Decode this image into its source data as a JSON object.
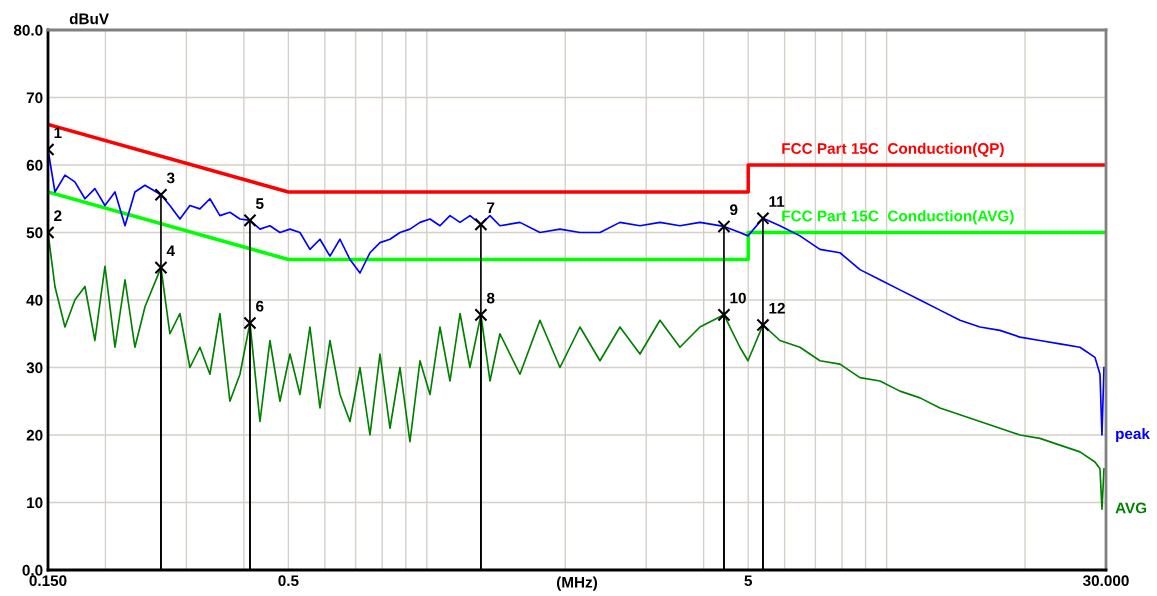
{
  "chart_data": {
    "type": "line",
    "xlabel": "(MHz)",
    "ylabel": "dBuV",
    "log": "x",
    "grid": true,
    "annotations": [
      {
        "text": "1",
        "x": 0.15,
        "y": 62.3
      },
      {
        "text": "2",
        "x": 0.15,
        "y": 50
      },
      {
        "text": "3",
        "x": 0.2641,
        "y": 55.6
      },
      {
        "text": "4",
        "x": 0.2641,
        "y": 44.8
      },
      {
        "text": "5",
        "x": 0.4124,
        "y": 51.8
      },
      {
        "text": "6",
        "x": 0.4124,
        "y": 36.6
      },
      {
        "text": "7",
        "x": 1.311,
        "y": 51.2
      },
      {
        "text": "8",
        "x": 1.311,
        "y": 37.8
      },
      {
        "text": "9",
        "x": 4.428,
        "y": 50.9
      },
      {
        "text": "10",
        "x": 4.428,
        "y": 37.8
      },
      {
        "text": "11",
        "x": 5.383,
        "y": 52.1
      },
      {
        "text": "12",
        "x": 5.383,
        "y": 36.3
      }
    ],
    "xlim": [
      0.15,
      30
    ],
    "ylim": [
      0,
      80
    ],
    "xticks": [
      {
        "value": 0.15,
        "label": "0.150"
      },
      {
        "value": 0.2,
        "label": null
      },
      {
        "value": 0.3,
        "label": null
      },
      {
        "value": 0.4,
        "label": null
      },
      0.5,
      {
        "value": 0.6,
        "label": null
      },
      {
        "value": 0.7,
        "label": null
      },
      {
        "value": 0.8,
        "label": null
      },
      {
        "value": 0.9,
        "label": null
      },
      {
        "value": 1,
        "label": null
      },
      {
        "value": 2,
        "label": null
      },
      {
        "value": 3,
        "label": null
      },
      {
        "value": 4,
        "label": null
      },
      5,
      {
        "value": 6,
        "label": null
      },
      {
        "value": 7,
        "label": null
      },
      {
        "value": 8,
        "label": null
      },
      {
        "value": 9,
        "label": null
      },
      {
        "value": 10,
        "label": null
      },
      {
        "value": 20,
        "label": null
      },
      {
        "value": 30,
        "label": "30.000"
      }
    ],
    "yticks": [
      {
        "value": 0,
        "label": "0.0"
      },
      10,
      20,
      30,
      40,
      50,
      60,
      70,
      {
        "value": 80,
        "label": "80.0"
      }
    ],
    "x": [
      0.15,
      0.1553,
      0.1633,
      0.1716,
      0.1805,
      0.1897,
      0.1995,
      0.2098,
      0.2206,
      0.2318,
      0.2438,
      0.2641,
      0.2762,
      0.2904,
      0.3053,
      0.321,
      0.3375,
      0.3548,
      0.373,
      0.3923,
      0.4124,
      0.4336,
      0.4558,
      0.4793,
      0.5039,
      0.5298,
      0.5569,
      0.5856,
      0.6156,
      0.6473,
      0.6805,
      0.7155,
      0.7522,
      0.7909,
      0.8315,
      0.8742,
      0.919,
      0.9663,
      1.016,
      1.068,
      1.123,
      1.181,
      1.241,
      1.311,
      1.372,
      1.442,
      1.594,
      1.762,
      1.948,
      2.153,
      2.38,
      2.63,
      2.908,
      3.214,
      3.552,
      3.926,
      4.428,
      4.797,
      4.994,
      5.383,
      5.861,
      6.479,
      7.161,
      7.916,
      8.75,
      9.672,
      10.69,
      11.82,
      13.06,
      14.44,
      15.96,
      17.64,
      19.5,
      21.55,
      23.82,
      26.33,
      28.39,
      29.11,
      29.4,
      29.7
    ],
    "series": [
      {
        "name": "FCC Part 15C  Conduction(QP)",
        "color": "#ff0000",
        "x": [
          0.15,
          0.5,
          5,
          5,
          30
        ],
        "values": [
          66,
          56,
          56,
          60,
          60
        ]
      },
      {
        "name": "FCC Part 15C  Conduction(AVG)",
        "color": "#00ff00",
        "x": [
          0.15,
          0.5,
          5,
          5,
          30
        ],
        "values": [
          56,
          46,
          46,
          50,
          50
        ]
      },
      {
        "name": "peak",
        "color": "#0000ff",
        "values": [
          62.3,
          56,
          58.5,
          57.5,
          55,
          56.5,
          54,
          56,
          51,
          56,
          57,
          55.6,
          54,
          52,
          54,
          53.5,
          55,
          52.5,
          53,
          52,
          51.8,
          50.5,
          51,
          50,
          50.5,
          50,
          47.5,
          49,
          46.5,
          49,
          46,
          44,
          47,
          48.5,
          49,
          50,
          50.5,
          51.5,
          52,
          51,
          52.5,
          51.5,
          52.5,
          51.2,
          52.5,
          51,
          51.5,
          50,
          50.5,
          50,
          50,
          51.5,
          51,
          51.5,
          51,
          51.5,
          50.9,
          50,
          49.5,
          52.1,
          51,
          49.5,
          47.5,
          47,
          44.5,
          43,
          41.5,
          40,
          38.5,
          37,
          36,
          35.5,
          34.5,
          34,
          33.5,
          33,
          31.5,
          29,
          20,
          30
        ]
      },
      {
        "name": "AVG",
        "color": "#008000",
        "values": [
          50,
          42,
          36,
          40,
          42,
          34,
          45,
          33,
          43,
          33,
          39,
          44.8,
          35,
          38,
          30,
          33,
          29,
          38,
          25,
          29,
          36.6,
          22,
          34,
          25,
          32,
          26,
          36,
          24,
          34,
          26,
          22,
          30,
          20,
          32,
          21,
          30,
          19,
          31,
          26,
          36,
          28,
          38,
          30,
          37.8,
          28,
          35,
          29,
          37,
          30,
          36,
          31,
          36,
          32,
          37,
          33,
          36,
          37.8,
          33,
          31,
          36.3,
          34,
          33,
          31,
          30.5,
          28.5,
          28,
          26.5,
          25.5,
          24,
          23,
          22,
          21,
          20,
          19.5,
          18.5,
          17.5,
          16,
          15,
          9,
          15
        ]
      },
      {
        "type": "lollipop",
        "color": "#000000",
        "marker": "cross",
        "x": [
          0.15,
          0.15,
          0.2641,
          0.2641,
          0.4124,
          0.4124,
          1.311,
          1.311,
          4.428,
          4.428,
          5.383,
          5.383
        ],
        "values": [
          62.3,
          50,
          55.6,
          44.8,
          51.8,
          36.6,
          51.2,
          37.8,
          50.9,
          37.8,
          52.1,
          36.3
        ]
      }
    ]
  }
}
